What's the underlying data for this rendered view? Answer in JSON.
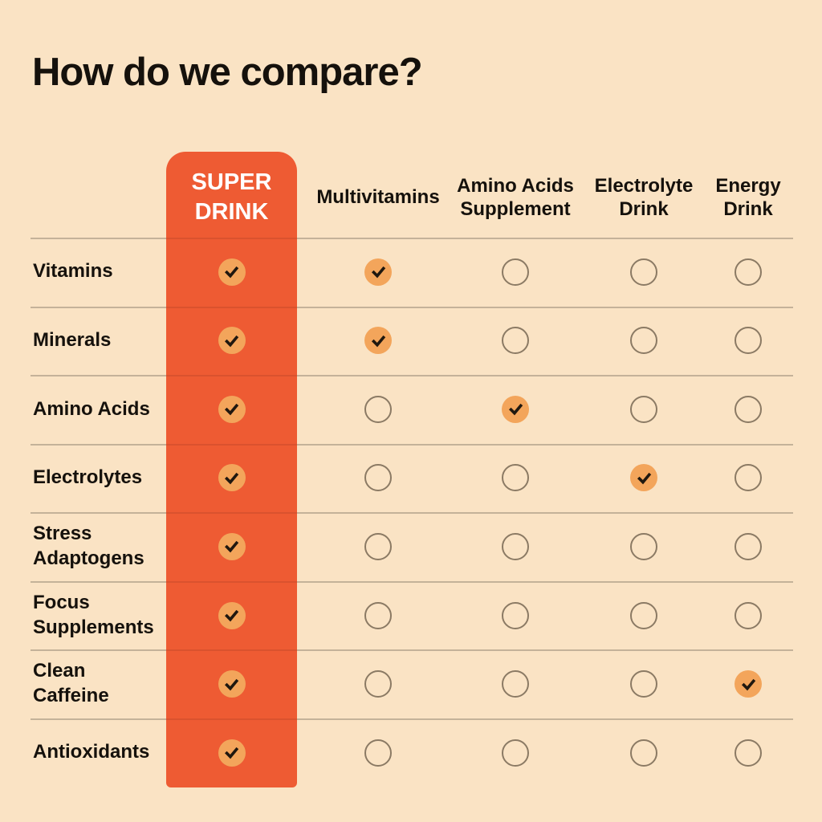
{
  "title": "How do we compare?",
  "ui": {
    "columns": [
      "SUPER\nDRINK",
      "Multivitamins",
      "Amino Acids\nSupplement",
      "Electrolyte\nDrink",
      "Energy\nDrink"
    ],
    "rows": [
      "Vitamins",
      "Minerals",
      "Amino Acids",
      "Electrolytes",
      "Stress\nAdaptogens",
      "Focus\nSupplements",
      "Clean\nCaffeine",
      "Antioxidants"
    ]
  },
  "icons": {
    "checked": "check-icon",
    "empty": "circle-outline-icon"
  },
  "colors": {
    "background": "#FAE3C4",
    "accent_column": "#EE5B33",
    "accent_column_line": "#DA522E",
    "check_circle": "#F3A55B",
    "check_mark": "#20180F",
    "empty_circle_border": "#8B7A64",
    "row_line": "#C4B299",
    "heading_text": "#15110C",
    "super_drink_text": "#FFFFFF"
  },
  "chart_data": {
    "type": "table",
    "title": "How do we compare?",
    "columns": [
      "SUPER DRINK",
      "Multivitamins",
      "Amino Acids Supplement",
      "Electrolyte Drink",
      "Energy Drink"
    ],
    "rows": [
      "Vitamins",
      "Minerals",
      "Amino Acids",
      "Electrolytes",
      "Stress Adaptogens",
      "Focus Supplements",
      "Clean Caffeine",
      "Antioxidants"
    ],
    "matrix": [
      [
        1,
        1,
        0,
        0,
        0
      ],
      [
        1,
        1,
        0,
        0,
        0
      ],
      [
        1,
        0,
        1,
        0,
        0
      ],
      [
        1,
        0,
        0,
        1,
        0
      ],
      [
        1,
        0,
        0,
        0,
        0
      ],
      [
        1,
        0,
        0,
        0,
        0
      ],
      [
        1,
        0,
        0,
        0,
        1
      ],
      [
        1,
        0,
        0,
        0,
        0
      ]
    ],
    "cell_encoding": {
      "1": "checked",
      "0": "empty"
    },
    "highlighted_column": "SUPER DRINK",
    "legend_position": "none",
    "grid": "horizontal-lines"
  }
}
